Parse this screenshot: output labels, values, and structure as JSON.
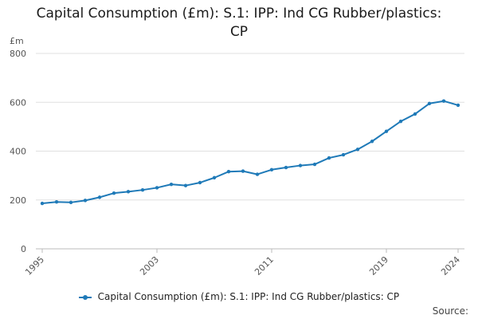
{
  "title": {
    "line1": "Capital Consumption (£m): S.1: IPP: Ind CG Rubber/plastics:",
    "line2": "CP"
  },
  "source_label": "Source:",
  "colors": {
    "series": "#1f7ab8",
    "grid": "#e0e0e0",
    "axis": "#bbbbbb"
  },
  "chart_data": {
    "type": "line",
    "title": "Capital Consumption (£m): S.1: IPP: Ind CG Rubber/plastics: CP",
    "ylabel": "£m",
    "xlabel": "",
    "ylim": [
      0,
      800
    ],
    "xlim": [
      1995,
      2024
    ],
    "yticks": [
      0,
      200,
      400,
      600,
      800
    ],
    "xticks": [
      "1995",
      "2003",
      "2011",
      "2019",
      "2024"
    ],
    "grid": true,
    "legend_position": "bottom",
    "series": [
      {
        "name": "Capital Consumption (£m): S.1: IPP: Ind CG Rubber/plastics: CP",
        "x": [
          1995,
          1996,
          1997,
          1998,
          1999,
          2000,
          2001,
          2002,
          2003,
          2004,
          2005,
          2006,
          2007,
          2008,
          2009,
          2010,
          2011,
          2012,
          2013,
          2014,
          2015,
          2016,
          2017,
          2018,
          2019,
          2020,
          2021,
          2022,
          2023,
          2024
        ],
        "values": [
          186,
          192,
          190,
          198,
          211,
          228,
          234,
          241,
          250,
          264,
          259,
          271,
          291,
          316,
          318,
          305,
          324,
          333,
          341,
          346,
          372,
          385,
          407,
          440,
          481,
          522,
          552,
          595,
          605,
          588
        ]
      }
    ]
  }
}
